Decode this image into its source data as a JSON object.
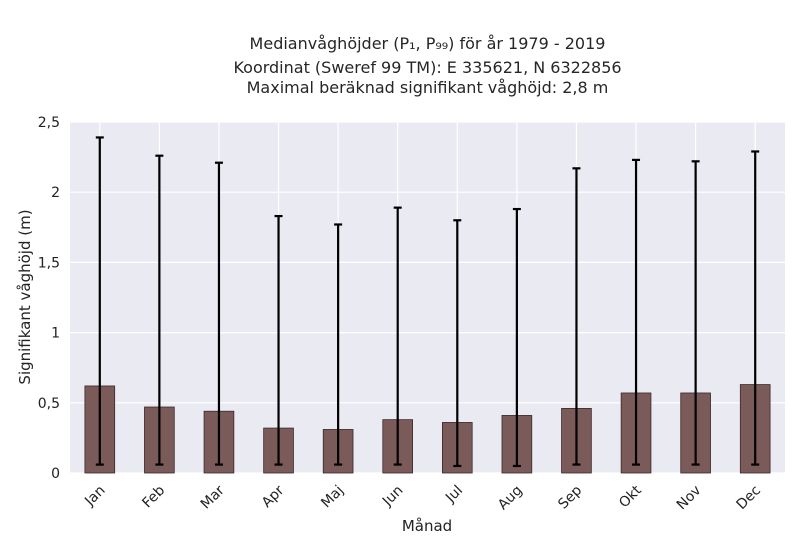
{
  "chart_data": {
    "type": "bar",
    "title": "Medianvåghöjder (P₁, P₉₉) för år 1979 - 2019",
    "subtitle1": "Koordinat (Sweref 99 TM): E 335621, N 6322856",
    "subtitle2": "Maximal beräknad signifikant våghöjd: 2,8 m",
    "xlabel": "Månad",
    "ylabel": "Signifikant våghöjd (m)",
    "categories": [
      "Jan",
      "Feb",
      "Mar",
      "Apr",
      "Maj",
      "Jun",
      "Jul",
      "Aug",
      "Sep",
      "Okt",
      "Nov",
      "Dec"
    ],
    "values": [
      0.62,
      0.47,
      0.44,
      0.32,
      0.31,
      0.38,
      0.36,
      0.41,
      0.46,
      0.57,
      0.57,
      0.63
    ],
    "p1": [
      0.06,
      0.06,
      0.06,
      0.06,
      0.06,
      0.06,
      0.05,
      0.05,
      0.06,
      0.06,
      0.06,
      0.06
    ],
    "p99": [
      2.39,
      2.26,
      2.21,
      1.83,
      1.77,
      1.89,
      1.8,
      1.88,
      2.17,
      2.23,
      2.22,
      2.29
    ],
    "ylim": [
      0,
      2.5
    ],
    "yticks": [
      "0",
      "0,5",
      "1",
      "1,5",
      "2",
      "2,5"
    ],
    "ytick_values": [
      0,
      0.5,
      1,
      1.5,
      2,
      2.5
    ],
    "grid": true,
    "colors": {
      "bar": "#7b5a5a",
      "bar_edge": "#3a2a2a",
      "errorbar": "#000000",
      "plot_bg": "#eaeaf2",
      "grid": "#ffffff"
    }
  }
}
